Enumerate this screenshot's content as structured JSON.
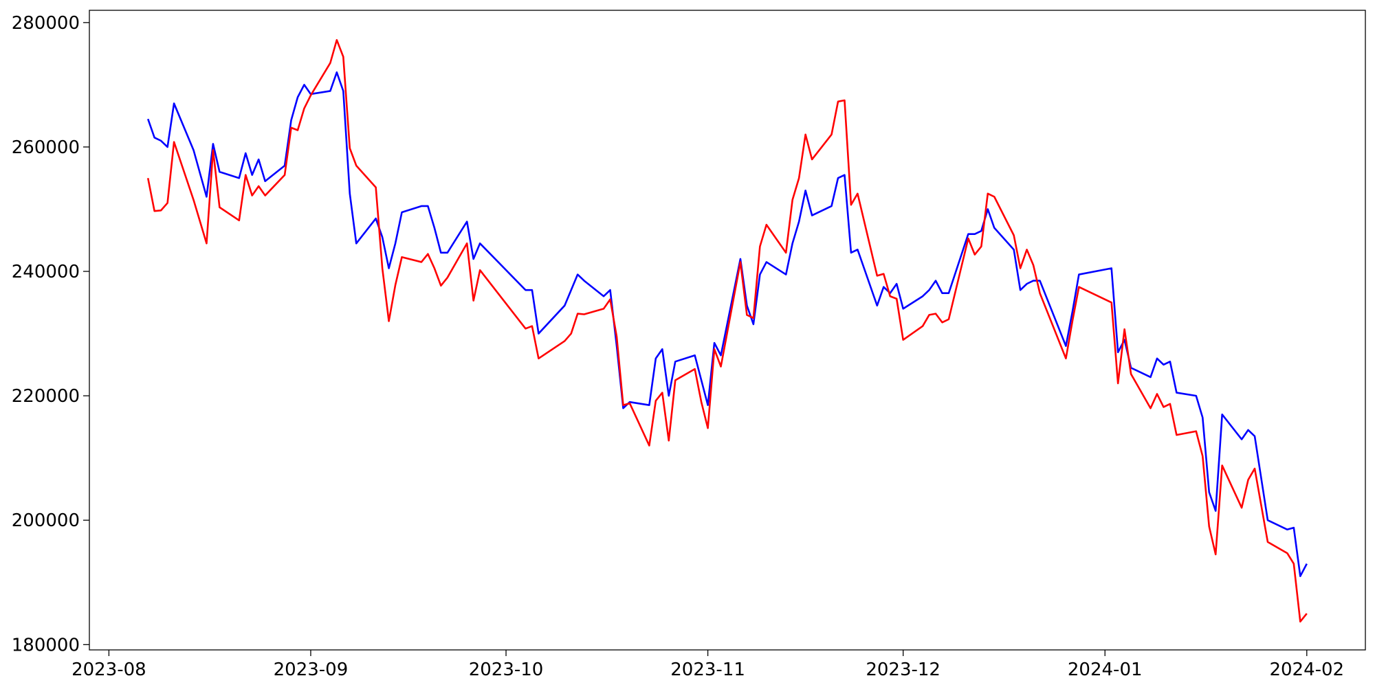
{
  "chart_data": {
    "type": "line",
    "x": [
      "2023-08-07",
      "2023-08-08",
      "2023-08-09",
      "2023-08-10",
      "2023-08-11",
      "2023-08-14",
      "2023-08-16",
      "2023-08-17",
      "2023-08-18",
      "2023-08-21",
      "2023-08-22",
      "2023-08-23",
      "2023-08-24",
      "2023-08-25",
      "2023-08-28",
      "2023-08-29",
      "2023-08-30",
      "2023-08-31",
      "2023-09-01",
      "2023-09-04",
      "2023-09-05",
      "2023-09-06",
      "2023-09-07",
      "2023-09-08",
      "2023-09-11",
      "2023-09-12",
      "2023-09-13",
      "2023-09-14",
      "2023-09-15",
      "2023-09-18",
      "2023-09-19",
      "2023-09-20",
      "2023-09-21",
      "2023-09-22",
      "2023-09-25",
      "2023-09-26",
      "2023-09-27",
      "2023-10-04",
      "2023-10-05",
      "2023-10-06",
      "2023-10-10",
      "2023-10-11",
      "2023-10-12",
      "2023-10-13",
      "2023-10-16",
      "2023-10-17",
      "2023-10-18",
      "2023-10-19",
      "2023-10-20",
      "2023-10-23",
      "2023-10-24",
      "2023-10-25",
      "2023-10-26",
      "2023-10-27",
      "2023-10-30",
      "2023-10-31",
      "2023-11-01",
      "2023-11-02",
      "2023-11-03",
      "2023-11-06",
      "2023-11-07",
      "2023-11-08",
      "2023-11-09",
      "2023-11-10",
      "2023-11-13",
      "2023-11-14",
      "2023-11-15",
      "2023-11-16",
      "2023-11-17",
      "2023-11-20",
      "2023-11-21",
      "2023-11-22",
      "2023-11-23",
      "2023-11-24",
      "2023-11-27",
      "2023-11-28",
      "2023-11-29",
      "2023-11-30",
      "2023-12-01",
      "2023-12-04",
      "2023-12-05",
      "2023-12-06",
      "2023-12-07",
      "2023-12-08",
      "2023-12-11",
      "2023-12-12",
      "2023-12-13",
      "2023-12-14",
      "2023-12-15",
      "2023-12-18",
      "2023-12-19",
      "2023-12-20",
      "2023-12-21",
      "2023-12-22",
      "2023-12-26",
      "2023-12-27",
      "2023-12-28",
      "2024-01-02",
      "2024-01-03",
      "2024-01-04",
      "2024-01-05",
      "2024-01-08",
      "2024-01-09",
      "2024-01-10",
      "2024-01-11",
      "2024-01-12",
      "2024-01-15",
      "2024-01-16",
      "2024-01-17",
      "2024-01-18",
      "2024-01-19",
      "2024-01-22",
      "2024-01-23",
      "2024-01-24",
      "2024-01-26",
      "2024-01-29",
      "2024-01-30",
      "2024-01-31",
      "2024-02-01"
    ],
    "series": [
      {
        "color": "#0000ff",
        "values": [
          264500,
          261500,
          261000,
          260000,
          267000,
          259500,
          252000,
          260500,
          256000,
          255000,
          259000,
          255500,
          258000,
          254500,
          257000,
          264300,
          268000,
          270000,
          268500,
          269000,
          272000,
          269000,
          252500,
          244500,
          248500,
          245500,
          240500,
          244500,
          249500,
          250500,
          250500,
          247000,
          243000,
          243000,
          248000,
          242000,
          244500,
          237000,
          237000,
          230000,
          234500,
          237000,
          239500,
          238500,
          236000,
          237000,
          228000,
          218000,
          219000,
          218500,
          226000,
          227500,
          220000,
          225500,
          226500,
          222500,
          218500,
          228500,
          226500,
          242000,
          234500,
          231500,
          239500,
          241500,
          239500,
          244500,
          248000,
          253000,
          249000,
          250500,
          255000,
          255500,
          243000,
          243500,
          234500,
          237500,
          236500,
          238000,
          234000,
          236000,
          237000,
          238500,
          236500,
          236500,
          246000,
          246000,
          246500,
          250000,
          247000,
          243500,
          237000,
          238000,
          238500,
          238500,
          228000,
          233500,
          239500,
          240500,
          227000,
          229000,
          224500,
          223000,
          226000,
          225000,
          225500,
          220500,
          220000,
          216500,
          204500,
          201500,
          217000,
          213000,
          214500,
          213500,
          200000,
          198500,
          198800,
          191000,
          193000
        ]
      },
      {
        "color": "#ff0000",
        "values": [
          255000,
          249700,
          249800,
          251000,
          260800,
          251500,
          244500,
          259500,
          250300,
          248200,
          255500,
          252200,
          253700,
          252200,
          255500,
          263100,
          262700,
          266200,
          268300,
          273500,
          277200,
          274500,
          259800,
          257000,
          253500,
          240500,
          232000,
          237800,
          242300,
          241500,
          242800,
          240500,
          237700,
          239000,
          244500,
          235300,
          240200,
          230800,
          231200,
          226000,
          228800,
          230000,
          233200,
          233100,
          234000,
          235500,
          229500,
          218500,
          218800,
          212000,
          219200,
          220500,
          212800,
          222500,
          224300,
          219000,
          214800,
          227500,
          224700,
          241500,
          233000,
          232500,
          244000,
          247500,
          243000,
          251500,
          255000,
          262000,
          258000,
          262000,
          267300,
          267500,
          250700,
          252500,
          239300,
          239600,
          236000,
          235600,
          229000,
          231200,
          233000,
          233200,
          231800,
          232300,
          245300,
          242700,
          244000,
          252500,
          252000,
          245800,
          240500,
          243500,
          241000,
          236500,
          226000,
          232000,
          237500,
          235000,
          222000,
          230700,
          223500,
          218000,
          220300,
          218200,
          218700,
          213700,
          214300,
          210300,
          199000,
          194500,
          208800,
          202000,
          206500,
          208300,
          196500,
          194700,
          193000,
          183700,
          185000
        ]
      }
    ],
    "xlim": [
      "2023-07-29",
      "2024-02-10"
    ],
    "xticks": [
      {
        "value": "2023-08-01",
        "label": "2023-08"
      },
      {
        "value": "2023-09-01",
        "label": "2023-09"
      },
      {
        "value": "2023-10-01",
        "label": "2023-10"
      },
      {
        "value": "2023-11-01",
        "label": "2023-11"
      },
      {
        "value": "2023-12-01",
        "label": "2023-12"
      },
      {
        "value": "2024-01-01",
        "label": "2024-01"
      },
      {
        "value": "2024-02-01",
        "label": "2024-02"
      }
    ],
    "ylim": [
      179150,
      281970
    ],
    "yticks": [
      180000,
      200000,
      220000,
      240000,
      260000,
      280000
    ],
    "grid": false
  }
}
